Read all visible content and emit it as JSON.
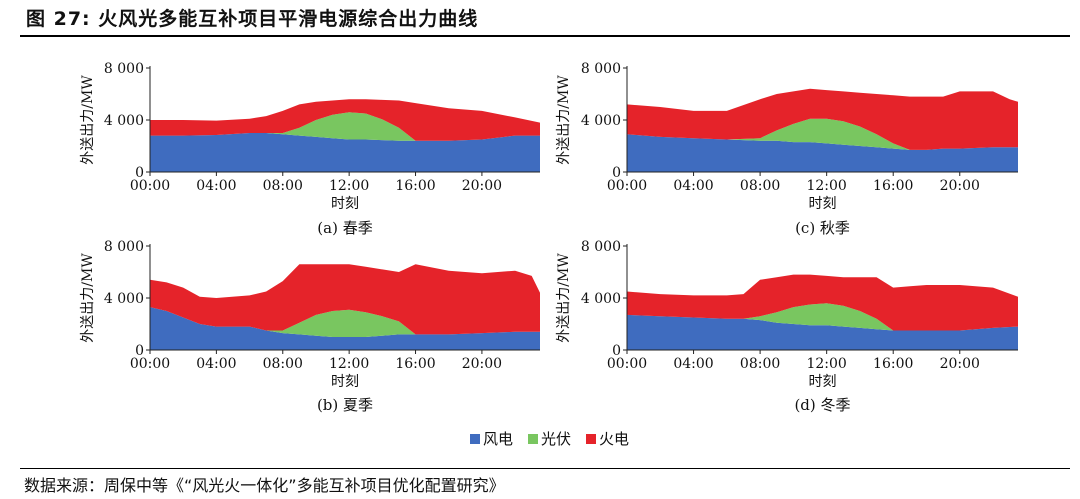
{
  "header": {
    "title": "图  27:  火风光多能互补项目平滑电源综合出力曲线"
  },
  "footer": {
    "source": "数据来源：周保中等《“风光火一体化”多能互补项目优化配置研究》"
  },
  "legend": {
    "items": [
      {
        "label": "风电",
        "color": "#3f6cbf"
      },
      {
        "label": "光伏",
        "color": "#79c660"
      },
      {
        "label": "火电",
        "color": "#e5232a"
      }
    ]
  },
  "chart_data": [
    {
      "type": "area",
      "caption": "(a) 春季",
      "xlabel": "时刻",
      "ylabel": "外送出力/MW",
      "xticks": [
        "00:00",
        "04:00",
        "08:00",
        "12:00",
        "16:00",
        "20:00"
      ],
      "yticks": [
        "0",
        "4 000",
        "8 000"
      ],
      "xlim": [
        0,
        23.5
      ],
      "ylim": [
        0,
        8000
      ],
      "stacked": true,
      "x": [
        0,
        2,
        4,
        6,
        7,
        8,
        9,
        10,
        11,
        12,
        13,
        14,
        15,
        16,
        18,
        20,
        22,
        23.5
      ],
      "series": [
        {
          "name": "风电",
          "values": [
            2800,
            2800,
            2850,
            3000,
            3000,
            2900,
            2800,
            2700,
            2600,
            2500,
            2500,
            2450,
            2400,
            2400,
            2400,
            2500,
            2800,
            2800
          ]
        },
        {
          "name": "光伏",
          "values": [
            0,
            0,
            0,
            0,
            0,
            100,
            600,
            1300,
            1800,
            2100,
            2000,
            1600,
            1000,
            0,
            0,
            0,
            0,
            0
          ]
        },
        {
          "name": "火电",
          "values": [
            1200,
            1200,
            1100,
            1100,
            1300,
            1700,
            1800,
            1400,
            1100,
            1000,
            1100,
            1500,
            2100,
            2900,
            2500,
            2200,
            1400,
            1000
          ]
        }
      ]
    },
    {
      "type": "area",
      "caption": "(b) 夏季",
      "xlabel": "时刻",
      "ylabel": "外送出力/MW",
      "xticks": [
        "00:00",
        "04:00",
        "08:00",
        "12:00",
        "16:00",
        "20:00"
      ],
      "yticks": [
        "0",
        "4 000",
        "8 000"
      ],
      "xlim": [
        0,
        23.5
      ],
      "ylim": [
        0,
        8000
      ],
      "stacked": true,
      "x": [
        0,
        1,
        2,
        3,
        4,
        6,
        7,
        8,
        9,
        10,
        11,
        12,
        13,
        14,
        15,
        16,
        18,
        20,
        22,
        23,
        23.5
      ],
      "series": [
        {
          "name": "风电",
          "values": [
            3300,
            3000,
            2500,
            2000,
            1800,
            1800,
            1500,
            1300,
            1200,
            1100,
            1000,
            1000,
            1000,
            1100,
            1200,
            1200,
            1200,
            1300,
            1400,
            1400,
            1400
          ]
        },
        {
          "name": "光伏",
          "values": [
            0,
            0,
            0,
            0,
            0,
            0,
            0,
            200,
            900,
            1600,
            2000,
            2100,
            1900,
            1500,
            1000,
            0,
            0,
            0,
            0,
            0,
            0
          ]
        },
        {
          "name": "火电",
          "values": [
            2100,
            2200,
            2300,
            2100,
            2200,
            2400,
            3000,
            3800,
            4500,
            3900,
            3600,
            3500,
            3500,
            3600,
            3800,
            5400,
            4900,
            4600,
            4700,
            4300,
            3000
          ]
        }
      ]
    },
    {
      "type": "area",
      "caption": "(c) 秋季",
      "xlabel": "时刻",
      "ylabel": "外送出力/MW",
      "xticks": [
        "00:00",
        "04:00",
        "08:00",
        "12:00",
        "16:00",
        "20:00"
      ],
      "yticks": [
        "0",
        "4 000",
        "8 000"
      ],
      "xlim": [
        0,
        23.5
      ],
      "ylim": [
        0,
        8000
      ],
      "stacked": true,
      "x": [
        0,
        2,
        4,
        6,
        8,
        9,
        10,
        11,
        12,
        13,
        14,
        15,
        16,
        17,
        18,
        19,
        20,
        22,
        23,
        23.5
      ],
      "series": [
        {
          "name": "风电",
          "values": [
            2900,
            2700,
            2600,
            2500,
            2400,
            2400,
            2300,
            2300,
            2200,
            2100,
            2000,
            1900,
            1800,
            1700,
            1700,
            1800,
            1800,
            1900,
            1900,
            1900
          ]
        },
        {
          "name": "光伏",
          "values": [
            0,
            0,
            0,
            0,
            200,
            800,
            1400,
            1800,
            1900,
            1800,
            1500,
            1000,
            400,
            0,
            0,
            0,
            0,
            0,
            0,
            0
          ]
        },
        {
          "name": "火电",
          "values": [
            2300,
            2300,
            2100,
            2200,
            3000,
            2800,
            2500,
            2300,
            2200,
            2300,
            2600,
            3100,
            3700,
            4100,
            4100,
            4000,
            4400,
            4300,
            3700,
            3500
          ]
        }
      ]
    },
    {
      "type": "area",
      "caption": "(d) 冬季",
      "xlabel": "时刻",
      "ylabel": "外送出力/MW",
      "xticks": [
        "00:00",
        "04:00",
        "08:00",
        "12:00",
        "16:00",
        "20:00"
      ],
      "yticks": [
        "0",
        "4 000",
        "8 000"
      ],
      "xlim": [
        0,
        23.5
      ],
      "ylim": [
        0,
        8000
      ],
      "stacked": true,
      "x": [
        0,
        2,
        4,
        6,
        7,
        8,
        9,
        10,
        11,
        12,
        13,
        14,
        15,
        16,
        17,
        18,
        20,
        22,
        23.5
      ],
      "series": [
        {
          "name": "风电",
          "values": [
            2700,
            2600,
            2500,
            2400,
            2400,
            2300,
            2100,
            2000,
            1900,
            1900,
            1800,
            1700,
            1600,
            1500,
            1500,
            1500,
            1500,
            1700,
            1800
          ]
        },
        {
          "name": "光伏",
          "values": [
            0,
            0,
            0,
            0,
            0,
            300,
            800,
            1300,
            1600,
            1700,
            1600,
            1300,
            800,
            0,
            0,
            0,
            0,
            0,
            0
          ]
        },
        {
          "name": "火电",
          "values": [
            1800,
            1700,
            1700,
            1800,
            1900,
            2800,
            2700,
            2500,
            2300,
            2100,
            2200,
            2600,
            3200,
            3300,
            3400,
            3500,
            3500,
            3100,
            2300
          ]
        }
      ]
    }
  ]
}
